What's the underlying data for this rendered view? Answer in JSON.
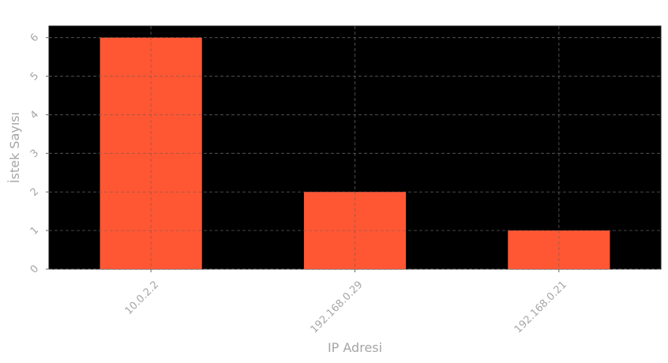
{
  "chart_data": {
    "type": "bar",
    "categories": [
      "10.0.2.2",
      "192.168.0.29",
      "192.168.0.21"
    ],
    "values": [
      6,
      2,
      1
    ],
    "title": "",
    "xlabel": "IP Adresi",
    "ylabel": "İstek Sayısı",
    "ylim": [
      0,
      6.3
    ],
    "yticks": [
      "0",
      "1",
      "2",
      "3",
      "4",
      "5",
      "6"
    ],
    "grid": true,
    "colors": {
      "bar": "#ff5733",
      "plot_background": "#000000",
      "text": "#a6a6a6",
      "grid": "#555555"
    }
  }
}
